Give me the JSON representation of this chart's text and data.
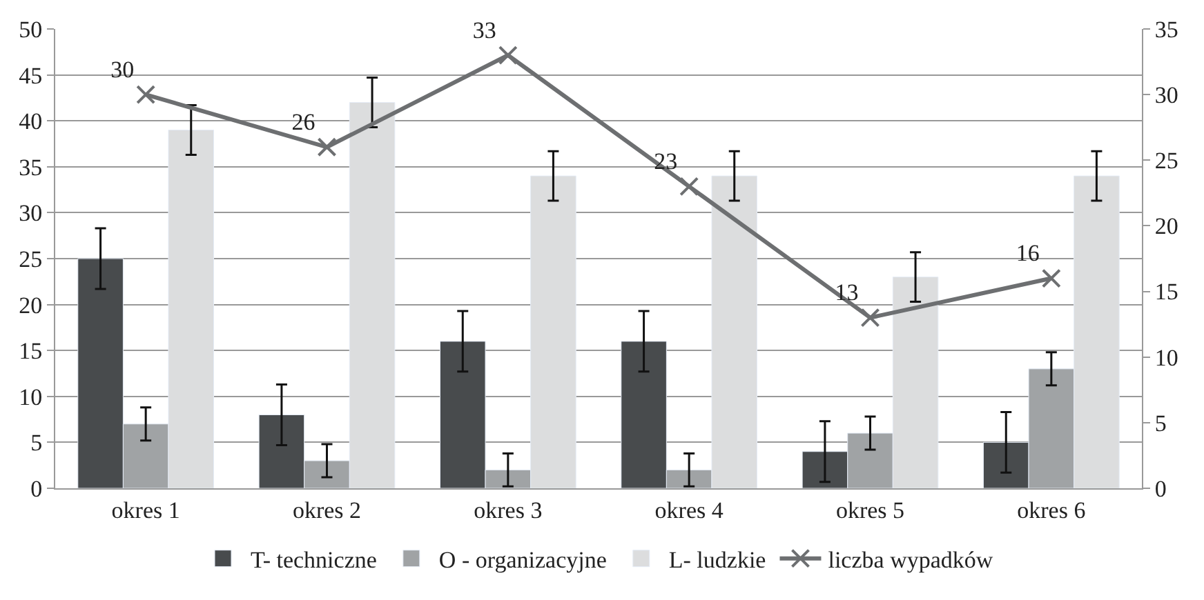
{
  "chart_data": {
    "type": "bar",
    "categories": [
      "okres 1",
      "okres 2",
      "okres 3",
      "okres 4",
      "okres 5",
      "okres 6"
    ],
    "series": [
      {
        "name": "T- techniczne",
        "color": "#484b4d",
        "values": [
          25,
          8,
          16,
          16,
          4,
          5
        ],
        "errors": [
          3.3,
          3.3,
          3.3,
          3.3,
          3.3,
          3.3
        ]
      },
      {
        "name": "O - organizacyjne",
        "color": "#a0a3a5",
        "values": [
          7,
          3,
          2,
          2,
          6,
          13
        ],
        "errors": [
          1.8,
          1.8,
          1.8,
          1.8,
          1.8,
          1.8
        ]
      },
      {
        "name": "L- ludzkie",
        "color": "#dcddde",
        "values": [
          39,
          42,
          34,
          34,
          23,
          34
        ],
        "errors": [
          2.7,
          2.7,
          2.7,
          2.7,
          2.7,
          2.7
        ]
      },
      {
        "name": "liczba wypadków",
        "type": "line",
        "axis": "y2",
        "color": "#6d6f71",
        "marker": "cross",
        "data_labels": true,
        "values": [
          30,
          26,
          33,
          23,
          13,
          16
        ]
      }
    ],
    "ylim": [
      0,
      50
    ],
    "yticks": [
      0,
      5,
      10,
      15,
      20,
      25,
      30,
      35,
      40,
      45,
      50
    ],
    "y2lim": [
      0,
      35
    ],
    "y2ticks": [
      0,
      5,
      10,
      15,
      20,
      25,
      30,
      35
    ],
    "grid": "y",
    "legend": "bottom"
  }
}
